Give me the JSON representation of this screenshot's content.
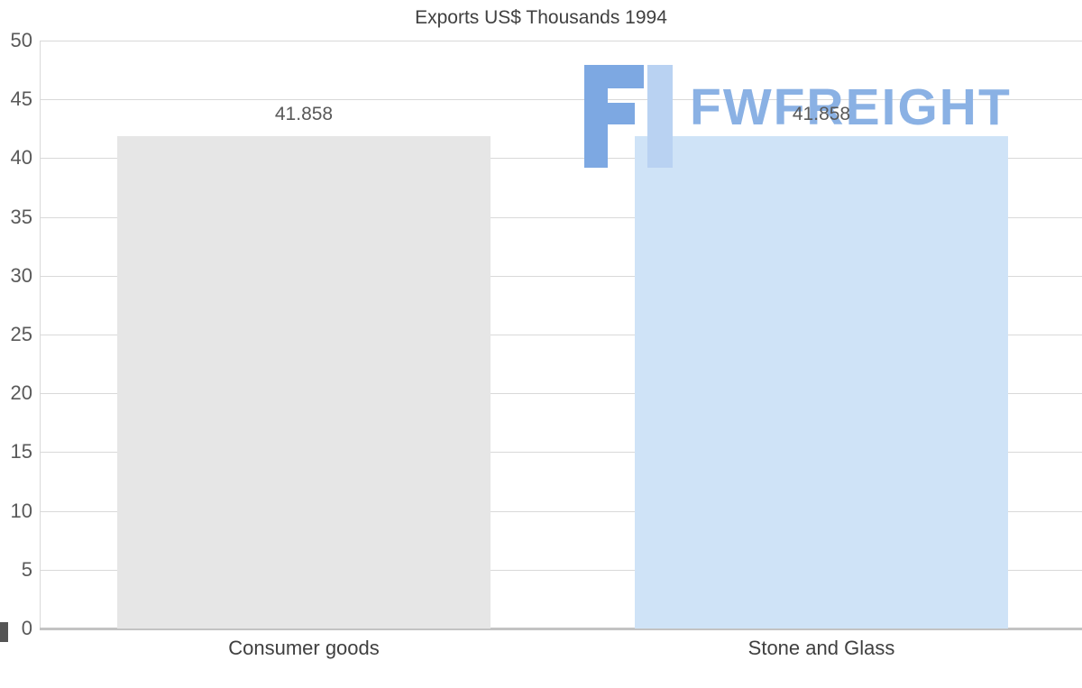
{
  "chart_data": {
    "type": "bar",
    "title": "Exports US$ Thousands 1994",
    "categories": [
      "Consumer goods",
      "Stone and Glass"
    ],
    "values": [
      41.858,
      41.858
    ],
    "value_labels": [
      "41.858",
      "41.858"
    ],
    "bar_colors": [
      "#e6e6e6",
      "#cfe3f7"
    ],
    "xlabel": "",
    "ylabel": "",
    "ylim": [
      0,
      50
    ],
    "ytick_step": 5,
    "grid": "horizontal",
    "legend": "none"
  },
  "watermark": {
    "text": "FWFREIGHT",
    "color": "#8ab1e4",
    "logo_primary": "#7da8e2",
    "logo_secondary": "#b9d2f2"
  }
}
